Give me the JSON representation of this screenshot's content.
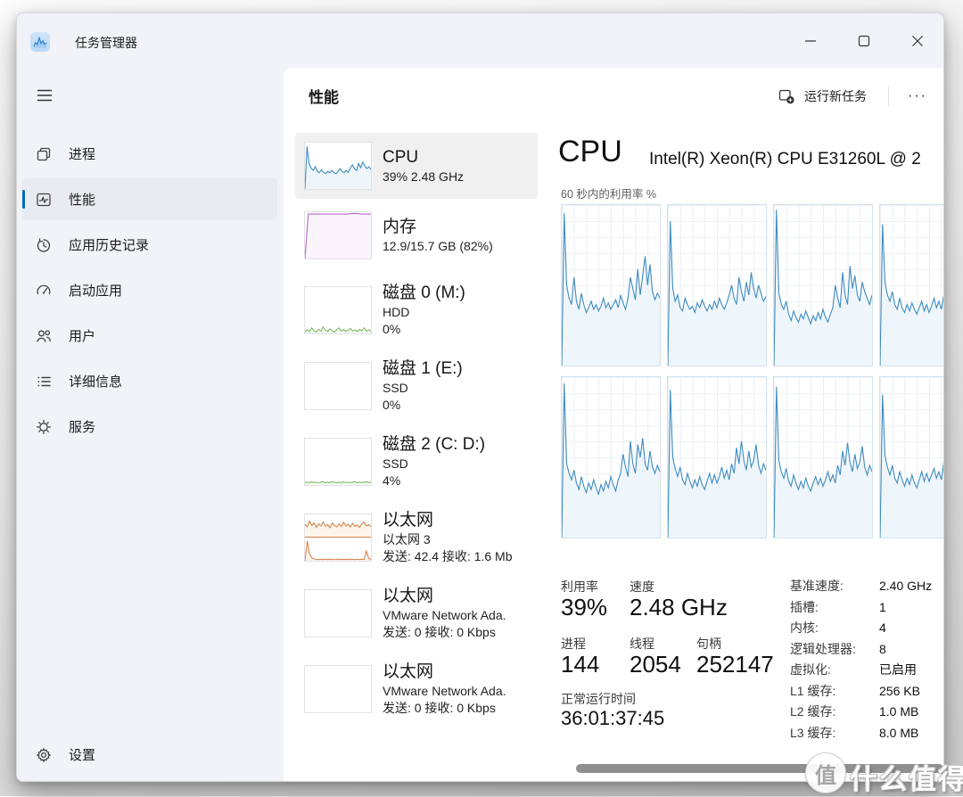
{
  "window": {
    "title": "任务管理器"
  },
  "sidebar": {
    "items": [
      {
        "label": "进程"
      },
      {
        "label": "性能"
      },
      {
        "label": "应用历史记录"
      },
      {
        "label": "启动应用"
      },
      {
        "label": "用户"
      },
      {
        "label": "详细信息"
      },
      {
        "label": "服务"
      }
    ],
    "settings": "设置"
  },
  "header": {
    "title": "性能",
    "run_new_task": "运行新任务",
    "more": "···"
  },
  "perf_list": [
    {
      "title": "CPU",
      "line2": "39% 2.48 GHz"
    },
    {
      "title": "内存",
      "line2": "12.9/15.7 GB (82%)"
    },
    {
      "title": "磁盘 0 (M:)",
      "line2": "HDD",
      "line3": "0%"
    },
    {
      "title": "磁盘 1 (E:)",
      "line2": "SSD",
      "line3": "0%"
    },
    {
      "title": "磁盘 2 (C: D:)",
      "line2": "SSD",
      "line3": "4%"
    },
    {
      "title": "以太网",
      "line2": "以太网 3",
      "line3": "发送: 42.4 接收: 1.6 Mb"
    },
    {
      "title": "以太网",
      "line2": "VMware Network Ada.",
      "line3": "发送: 0 接收: 0 Kbps"
    },
    {
      "title": "以太网",
      "line2": "VMware Network Ada.",
      "line3": "发送: 0 接收: 0 Kbps"
    }
  ],
  "detail": {
    "title": "CPU",
    "subtitle": "Intel(R) Xeon(R) CPU E31260L @ 2",
    "caption": "60 秒内的利用率 %",
    "stats": {
      "util_label": "利用率",
      "util_value": "39%",
      "speed_label": "速度",
      "speed_value": "2.48 GHz",
      "proc_label": "进程",
      "proc_value": "144",
      "thread_label": "线程",
      "thread_value": "2054",
      "handle_label": "句柄",
      "handle_value": "252147",
      "uptime_label": "正常运行时间",
      "uptime_value": "36:01:37:45"
    },
    "specs": [
      {
        "label": "基准速度:",
        "value": "2.40 GHz"
      },
      {
        "label": "插槽:",
        "value": "1"
      },
      {
        "label": "内核:",
        "value": "4"
      },
      {
        "label": "逻辑处理器:",
        "value": "8"
      },
      {
        "label": "虚拟化:",
        "value": "已启用"
      },
      {
        "label": "L1 缓存:",
        "value": "256 KB"
      },
      {
        "label": "L2 缓存:",
        "value": "1.0 MB"
      },
      {
        "label": "L3 缓存:",
        "value": "8.0 MB"
      }
    ]
  },
  "watermark": {
    "badge": "值",
    "text": "什么值得买"
  },
  "chart_data": {
    "type": "line",
    "title": "60 秒内的利用率 %",
    "ylim": [
      0,
      100
    ],
    "styles": {
      "cpu": {
        "line": "#3f8cbf",
        "fill": "#eff6fb"
      },
      "mem": {
        "line": "#b966cc",
        "fill": "#faf5fc"
      },
      "disk": {
        "line": "#77b25b",
        "fill": "#f3f9ef"
      },
      "eth": {
        "line": "#ce7b40",
        "fill": "#fdf4ec"
      }
    },
    "series": {
      "cpu_thumb": [
        0,
        92,
        55,
        45,
        40,
        48,
        38,
        35,
        42,
        36,
        33,
        38,
        35,
        40,
        36,
        33,
        37,
        44,
        38,
        35,
        40,
        36,
        45,
        52,
        44,
        40,
        55,
        46,
        58,
        50,
        44,
        48,
        42
      ],
      "mem_thumb": [
        0,
        96,
        96,
        96,
        96,
        96,
        96,
        96,
        96,
        96,
        96,
        96,
        96,
        96,
        97,
        97.5,
        97,
        96,
        96,
        96,
        96
      ],
      "disk0_thumb": [
        2,
        8,
        4,
        12,
        6,
        3,
        9,
        5,
        14,
        7,
        4,
        10,
        6,
        3,
        8,
        12,
        5,
        9,
        4,
        7,
        11,
        5,
        8,
        4,
        9,
        6,
        12,
        5,
        8,
        4
      ],
      "disk2_thumb": [
        5,
        6,
        5,
        7,
        5,
        6,
        5,
        6,
        7,
        5,
        6,
        5,
        7,
        6,
        5,
        6,
        5,
        7,
        5,
        6,
        5,
        6,
        7,
        5,
        6,
        5,
        6,
        7,
        5,
        6
      ],
      "eth_send": [
        55,
        45,
        70,
        50,
        62,
        42,
        58,
        48,
        66,
        46,
        55,
        40,
        62,
        50,
        44,
        58,
        46,
        64,
        48,
        56,
        44,
        60,
        46,
        52,
        42,
        58,
        66,
        48,
        54,
        46
      ],
      "eth_recv": [
        0,
        85,
        30,
        12,
        8,
        6,
        5,
        6,
        5,
        7,
        5,
        6,
        5,
        6,
        7,
        5,
        6,
        5,
        6,
        5,
        7,
        6,
        5,
        6,
        5,
        7,
        6,
        42,
        10,
        6
      ],
      "core0": [
        0,
        95,
        50,
        42,
        38,
        55,
        40,
        35,
        45,
        38,
        33,
        36,
        40,
        35,
        38,
        34,
        37,
        42,
        36,
        39,
        35,
        38,
        41,
        36,
        44,
        39,
        35,
        42,
        55,
        48,
        41,
        60,
        44,
        56,
        68,
        50,
        63,
        46,
        41,
        45,
        42
      ],
      "core1": [
        0,
        90,
        48,
        40,
        44,
        36,
        34,
        42,
        38,
        35,
        37,
        33,
        39,
        36,
        41,
        37,
        34,
        38,
        35,
        40,
        36,
        42,
        38,
        35,
        39,
        44,
        50,
        42,
        38,
        55,
        46,
        40,
        52,
        44,
        58,
        48,
        42,
        50,
        45,
        40,
        43
      ],
      "core2": [
        0,
        97,
        45,
        38,
        35,
        40,
        32,
        28,
        34,
        30,
        27,
        32,
        29,
        34,
        30,
        26,
        31,
        28,
        33,
        29,
        35,
        30,
        27,
        32,
        36,
        50,
        42,
        36,
        58,
        44,
        38,
        62,
        48,
        56,
        44,
        40,
        52,
        46,
        42,
        38,
        44
      ],
      "core3": [
        0,
        88,
        52,
        44,
        40,
        46,
        38,
        35,
        42,
        36,
        33,
        38,
        34,
        39,
        35,
        32,
        36,
        40,
        34,
        38,
        33,
        37,
        42,
        36,
        40,
        35,
        44,
        38,
        52,
        44,
        58,
        46,
        40,
        50,
        42,
        46,
        55,
        43,
        39,
        44,
        40
      ],
      "core4": [
        0,
        96,
        46,
        40,
        36,
        42,
        34,
        30,
        38,
        32,
        28,
        34,
        30,
        36,
        31,
        27,
        33,
        29,
        35,
        31,
        38,
        33,
        29,
        36,
        40,
        52,
        44,
        38,
        60,
        46,
        40,
        58,
        50,
        62,
        46,
        42,
        54,
        44,
        40,
        45,
        41
      ],
      "core5": [
        0,
        92,
        50,
        43,
        38,
        44,
        36,
        33,
        40,
        35,
        31,
        36,
        32,
        38,
        33,
        30,
        35,
        40,
        34,
        39,
        34,
        38,
        44,
        37,
        42,
        36,
        46,
        40,
        56,
        46,
        60,
        48,
        42,
        54,
        44,
        48,
        58,
        45,
        40,
        46,
        42
      ],
      "core6": [
        0,
        94,
        48,
        41,
        37,
        43,
        35,
        32,
        39,
        34,
        30,
        35,
        31,
        37,
        32,
        29,
        34,
        38,
        33,
        37,
        32,
        36,
        41,
        35,
        39,
        34,
        45,
        39,
        54,
        45,
        59,
        47,
        41,
        52,
        43,
        47,
        57,
        44,
        39,
        45,
        41
      ],
      "core7": [
        0,
        89,
        51,
        44,
        39,
        45,
        37,
        34,
        41,
        36,
        32,
        37,
        33,
        39,
        34,
        31,
        36,
        41,
        35,
        40,
        35,
        39,
        43,
        37,
        41,
        36,
        47,
        41,
        55,
        47,
        61,
        49,
        43,
        53,
        45,
        49,
        59,
        46,
        41,
        47,
        43
      ]
    }
  }
}
